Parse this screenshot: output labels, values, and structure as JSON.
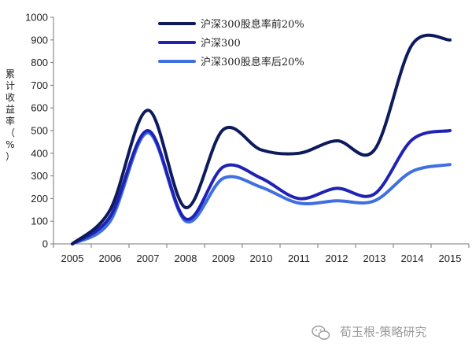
{
  "chart_data": {
    "type": "line",
    "ylabel": "累计收益率（%）",
    "ylim": [
      0,
      1000
    ],
    "yticks": [
      0,
      100,
      200,
      300,
      400,
      500,
      600,
      700,
      800,
      900,
      1000
    ],
    "x": [
      "2005",
      "2006",
      "2007",
      "2008",
      "2009",
      "2010",
      "2011",
      "2012",
      "2013",
      "2014",
      "2015"
    ],
    "legend_position": "top-right",
    "series": [
      {
        "name": "沪深300股息率前20%",
        "color": "#0d1a5c",
        "values": [
          0,
          150,
          590,
          160,
          505,
          415,
          400,
          455,
          415,
          880,
          900
        ]
      },
      {
        "name": "沪深300",
        "color": "#1f22b5",
        "values": [
          0,
          120,
          500,
          110,
          340,
          290,
          200,
          245,
          220,
          460,
          500
        ]
      },
      {
        "name": "沪深300股息率后20%",
        "color": "#3f6fe0",
        "values": [
          0,
          100,
          490,
          100,
          290,
          250,
          180,
          190,
          190,
          320,
          350
        ]
      }
    ]
  },
  "watermark": "荀玉根-策略研究"
}
